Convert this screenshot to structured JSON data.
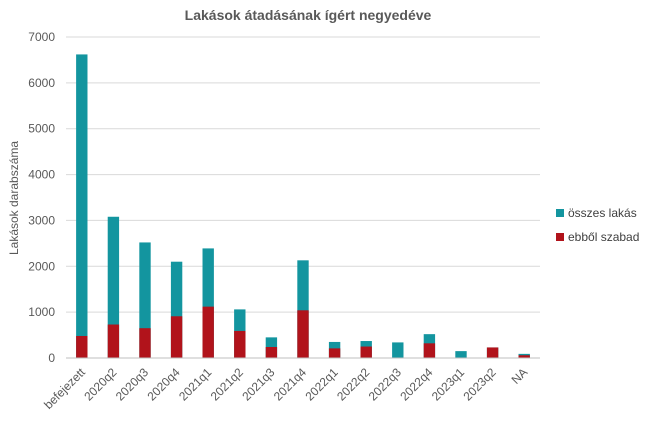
{
  "chart_data": {
    "type": "bar",
    "stacking": "overlapped",
    "title": "Lakások átadásának ígért negyedéve",
    "xlabel": "",
    "ylabel": "Lakások darabszáma",
    "ylim": [
      0,
      7000
    ],
    "yticks": [
      0,
      1000,
      2000,
      3000,
      4000,
      5000,
      6000,
      7000
    ],
    "grid": true,
    "legend_position": "right",
    "categories": [
      "befejezett",
      "2020q2",
      "2020q3",
      "2020q4",
      "2021q1",
      "2021q2",
      "2021q3",
      "2021q4",
      "2022q1",
      "2022q2",
      "2022q3",
      "2022q4",
      "2023q1",
      "2023q2",
      "NA"
    ],
    "series": [
      {
        "name": "összes lakás",
        "color": "#13959f",
        "values": [
          6620,
          3080,
          2520,
          2100,
          2390,
          1060,
          450,
          2130,
          350,
          370,
          340,
          520,
          150,
          230,
          90
        ]
      },
      {
        "name": "ebből szabad",
        "color": "#b1131b",
        "values": [
          480,
          730,
          650,
          910,
          1120,
          590,
          240,
          1040,
          210,
          250,
          0,
          320,
          0,
          230,
          60
        ]
      }
    ]
  }
}
